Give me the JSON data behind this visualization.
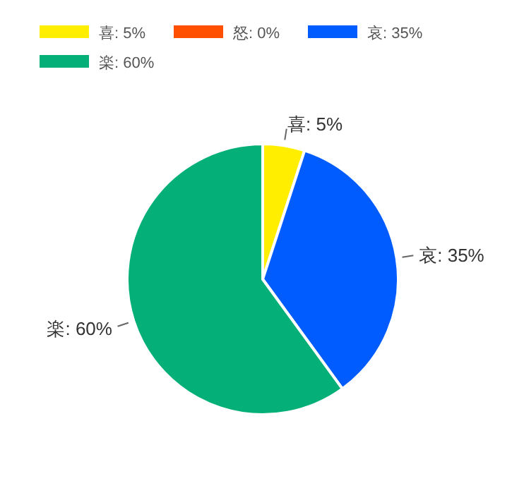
{
  "chart_data": {
    "type": "pie",
    "categories": [
      "喜: 5%",
      "怒: 0%",
      "哀: 35%",
      "楽: 60%"
    ],
    "values": [
      5,
      0,
      35,
      60
    ],
    "colors": [
      "#ffee00",
      "#ff4f00",
      "#005cff",
      "#04b077"
    ],
    "legend": "top left"
  }
}
